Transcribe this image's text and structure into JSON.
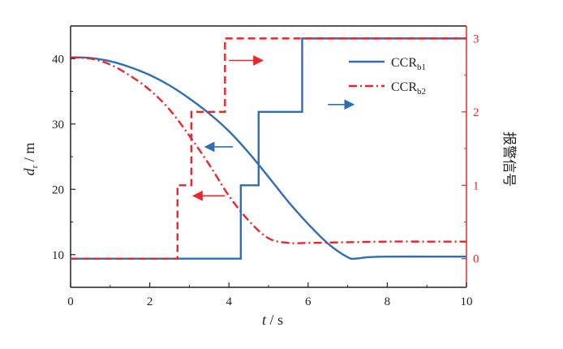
{
  "chart_data": {
    "type": "line",
    "xlabel": "t / s",
    "ylabel": "d_r / m",
    "ylabel_right": "报警信号",
    "xlim": [
      0,
      10
    ],
    "ylim": [
      5,
      45
    ],
    "ylim_right": [
      -0.39,
      3.17
    ],
    "x_ticks": [
      0,
      2,
      4,
      6,
      8,
      10
    ],
    "y_ticks": [
      10,
      20,
      30,
      40
    ],
    "y_ticks_right": [
      0,
      1,
      2,
      3
    ],
    "legend": {
      "position": "top-right",
      "entries": [
        {
          "name": "CCR_b1",
          "base": "CCR",
          "sub": "b1",
          "color": "#2f6db5",
          "style": "solid"
        },
        {
          "name": "CCR_b2",
          "base": "CCR",
          "sub": "b2",
          "color": "#e8262b",
          "style": "dashdot"
        }
      ]
    },
    "series": [
      {
        "name": "CCR_b1",
        "axis": "left",
        "kind": "distance",
        "color": "#2f6db5",
        "style": "solid",
        "points": [
          [
            0,
            40.2
          ],
          [
            0.5,
            40.1
          ],
          [
            1,
            39.6
          ],
          [
            1.5,
            38.7
          ],
          [
            2,
            37.5
          ],
          [
            2.5,
            35.9
          ],
          [
            3,
            33.9
          ],
          [
            3.5,
            31.6
          ],
          [
            4,
            28.9
          ],
          [
            4.5,
            25.6
          ],
          [
            5,
            21.9
          ],
          [
            5.5,
            18.1
          ],
          [
            6,
            14.7
          ],
          [
            6.5,
            11.7
          ],
          [
            7,
            9.6
          ],
          [
            7.2,
            9.4
          ],
          [
            7.5,
            9.6
          ],
          [
            8,
            9.7
          ],
          [
            9,
            9.7
          ],
          [
            10,
            9.7
          ]
        ]
      },
      {
        "name": "CCR_b2",
        "axis": "left",
        "kind": "distance",
        "color": "#e8262b",
        "style": "dashdot",
        "points": [
          [
            0,
            40.2
          ],
          [
            0.5,
            40.0
          ],
          [
            1,
            39.1
          ],
          [
            1.5,
            37.4
          ],
          [
            2,
            35.2
          ],
          [
            2.5,
            32.2
          ],
          [
            3,
            28.2
          ],
          [
            3.5,
            23.8
          ],
          [
            4,
            19.0
          ],
          [
            4.5,
            15.2
          ],
          [
            5,
            12.5
          ],
          [
            5.5,
            11.8
          ],
          [
            6,
            11.8
          ],
          [
            7,
            11.9
          ],
          [
            8,
            12.0
          ],
          [
            9,
            12.0
          ],
          [
            10,
            12.0
          ]
        ]
      },
      {
        "name": "CCR_b1",
        "axis": "right",
        "kind": "alarm",
        "color": "#2f6db5",
        "style": "solid",
        "points": [
          [
            0,
            0
          ],
          [
            4.3,
            0
          ],
          [
            4.3,
            1
          ],
          [
            4.75,
            1
          ],
          [
            4.75,
            2
          ],
          [
            5.85,
            2
          ],
          [
            5.85,
            3
          ],
          [
            10,
            3
          ]
        ]
      },
      {
        "name": "CCR_b2",
        "axis": "right",
        "kind": "alarm",
        "color": "#e8262b",
        "style": "dashed",
        "points": [
          [
            0,
            0
          ],
          [
            2.7,
            0
          ],
          [
            2.7,
            1
          ],
          [
            3.05,
            1
          ],
          [
            3.05,
            2
          ],
          [
            3.9,
            2
          ],
          [
            3.9,
            3
          ],
          [
            10,
            3
          ]
        ]
      }
    ],
    "annotations": [
      {
        "type": "arrow",
        "direction": "left",
        "color": "#2f6db5",
        "from": [
          4.1,
          26.5
        ],
        "to": [
          3.4,
          26.5
        ]
      },
      {
        "type": "arrow",
        "direction": "right",
        "color": "#2f6db5",
        "from": [
          6.5,
          2.1
        ],
        "to": [
          7.15,
          2.1
        ]
      },
      {
        "type": "arrow",
        "direction": "left",
        "color": "#e8262b",
        "from": [
          3.9,
          19.0
        ],
        "to": [
          3.1,
          19.0
        ]
      },
      {
        "type": "arrow",
        "direction": "right",
        "color": "#e8262b",
        "from": [
          4.0,
          2.7
        ],
        "to": [
          4.85,
          2.7
        ]
      }
    ],
    "grid": false
  }
}
